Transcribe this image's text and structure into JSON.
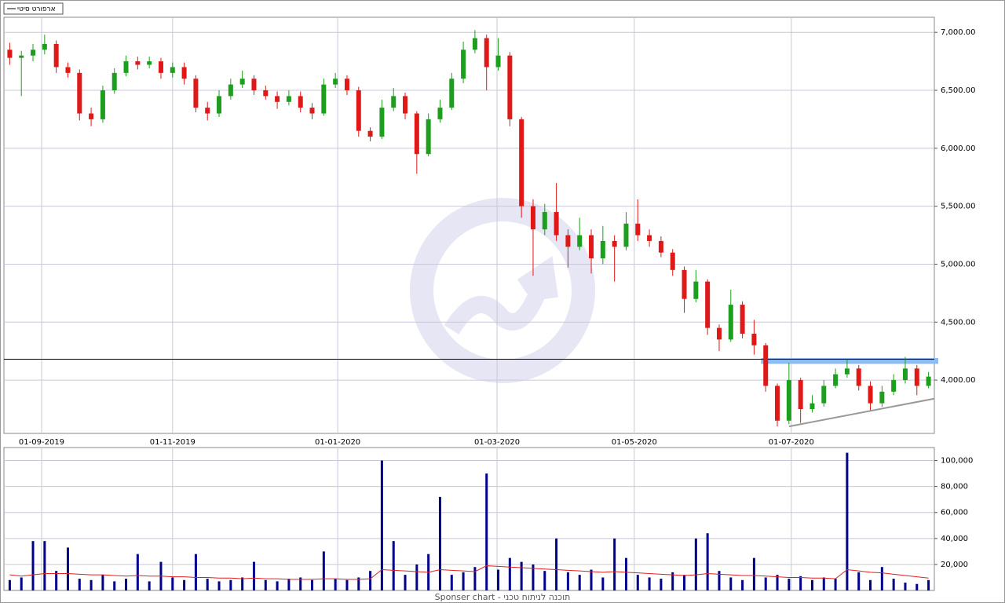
{
  "chart_data": [
    {
      "type": "candlestick",
      "legend_label": "ארפורט סיטי",
      "xlim": [
        -0.5,
        79.5
      ],
      "xticks": [
        {
          "value": 2.74,
          "label": "01-09-2019"
        },
        {
          "value": 14.0,
          "label": "01-11-2019"
        },
        {
          "value": 28.2,
          "label": "01-01-2020"
        },
        {
          "value": 41.9,
          "label": "01-03-2020"
        },
        {
          "value": 53.7,
          "label": "01-05-2020"
        },
        {
          "value": 67.2,
          "label": "01-07-2020"
        }
      ],
      "ylim": [
        3540,
        7130
      ],
      "yticks": [
        {
          "value": 4000,
          "label": "4,000.00"
        },
        {
          "value": 4500,
          "label": "4,500.00"
        },
        {
          "value": 5000,
          "label": "5,000.00"
        },
        {
          "value": 5500,
          "label": "5,500.00"
        },
        {
          "value": 6000,
          "label": "6,000.00"
        },
        {
          "value": 6500,
          "label": "6,500.00"
        },
        {
          "value": 7000,
          "label": "7,000.00"
        }
      ],
      "grid": true,
      "up_color": "#1e9e1e",
      "down_color": "#e01818",
      "open": [
        6850,
        6780,
        6800,
        6850,
        6900,
        6700,
        6650,
        6300,
        6250,
        6500,
        6650,
        6750,
        6720,
        6750,
        6650,
        6700,
        6600,
        6350,
        6300,
        6450,
        6550,
        6600,
        6500,
        6450,
        6400,
        6450,
        6350,
        6300,
        6550,
        6600,
        6500,
        6150,
        6100,
        6350,
        6450,
        6300,
        5950,
        6250,
        6350,
        6600,
        6850,
        6950,
        6700,
        6800,
        6250,
        5500,
        5300,
        5450,
        5250,
        5150,
        5250,
        5050,
        5200,
        5150,
        5350,
        5250,
        5200,
        5100,
        4950,
        4700,
        4850,
        4450,
        4350,
        4650,
        4400,
        4300,
        3950,
        3650,
        4000,
        3750,
        3800,
        3950,
        4050,
        4100,
        3950,
        3800,
        3900,
        4000,
        4100,
        3950
      ],
      "high": [
        6910,
        6840,
        6900,
        6980,
        6930,
        6740,
        6680,
        6350,
        6540,
        6690,
        6800,
        6790,
        6790,
        6780,
        6740,
        6740,
        6630,
        6400,
        6500,
        6600,
        6670,
        6630,
        6540,
        6490,
        6500,
        6490,
        6390,
        6600,
        6650,
        6630,
        6530,
        6180,
        6420,
        6520,
        6480,
        6320,
        6300,
        6420,
        6650,
        6920,
        7020,
        6980,
        6950,
        6830,
        6270,
        5560,
        5520,
        5700,
        5300,
        5400,
        5300,
        5330,
        5250,
        5450,
        5560,
        5300,
        5240,
        5130,
        4980,
        4950,
        4870,
        4480,
        4780,
        4680,
        4520,
        4320,
        3970,
        4150,
        4020,
        3870,
        4000,
        4100,
        4180,
        4130,
        3990,
        3950,
        4050,
        4200,
        4130,
        4070
      ],
      "low": [
        6720,
        6450,
        6750,
        6810,
        6650,
        6610,
        6240,
        6190,
        6220,
        6470,
        6620,
        6680,
        6690,
        6600,
        6610,
        6550,
        6310,
        6240,
        6270,
        6420,
        6520,
        6460,
        6420,
        6340,
        6370,
        6310,
        6250,
        6280,
        6520,
        6460,
        6100,
        6060,
        6080,
        6320,
        6250,
        5780,
        5930,
        6220,
        6330,
        6560,
        6820,
        6500,
        6670,
        6190,
        5400,
        4900,
        5250,
        5200,
        4970,
        5120,
        4920,
        5000,
        4850,
        5120,
        5200,
        5150,
        5060,
        4900,
        4580,
        4670,
        4390,
        4250,
        4330,
        4360,
        4220,
        3900,
        3600,
        3620,
        3630,
        3720,
        3770,
        3930,
        4020,
        3910,
        3740,
        3770,
        3870,
        3970,
        3870,
        3930
      ],
      "close": [
        6780,
        6800,
        6850,
        6900,
        6700,
        6650,
        6300,
        6250,
        6500,
        6650,
        6750,
        6720,
        6750,
        6650,
        6700,
        6600,
        6350,
        6300,
        6450,
        6550,
        6600,
        6500,
        6450,
        6400,
        6450,
        6350,
        6300,
        6550,
        6600,
        6500,
        6150,
        6100,
        6350,
        6450,
        6300,
        5950,
        6250,
        6350,
        6600,
        6850,
        6950,
        6700,
        6800,
        6250,
        5500,
        5300,
        5450,
        5250,
        5150,
        5250,
        5050,
        5200,
        5150,
        5350,
        5250,
        5200,
        5100,
        4950,
        4700,
        4850,
        4450,
        4350,
        4650,
        4400,
        4300,
        3950,
        3650,
        4000,
        3750,
        3800,
        3950,
        4050,
        4100,
        3950,
        3800,
        3900,
        4000,
        4100,
        3950,
        4030
      ],
      "hline": 4180,
      "zone": {
        "x": [
          64.6,
          80
        ],
        "y": [
          4140,
          4190
        ],
        "color": "#8cbcf0"
      },
      "trend": {
        "x": [
          67,
          79.5
        ],
        "y": [
          3600,
          3840
        ],
        "color": "#999999"
      }
    },
    {
      "type": "bar",
      "color": "#00008b",
      "ylim": [
        0,
        110000
      ],
      "yticks": [
        {
          "value": 20000,
          "label": "20,000"
        },
        {
          "value": 40000,
          "label": "40,000"
        },
        {
          "value": 60000,
          "label": "60,000"
        },
        {
          "value": 80000,
          "label": "80,000"
        },
        {
          "value": 100000,
          "label": "100,000"
        }
      ],
      "values": [
        8000,
        10000,
        38000,
        38000,
        15000,
        33000,
        9000,
        8000,
        12000,
        7000,
        9000,
        28000,
        7000,
        22000,
        10000,
        8000,
        28000,
        9000,
        7000,
        8000,
        10000,
        22000,
        8000,
        7000,
        9000,
        10000,
        8000,
        30000,
        9000,
        8000,
        10000,
        15000,
        100000,
        38000,
        12000,
        20000,
        28000,
        72000,
        12000,
        14000,
        18000,
        90000,
        16000,
        25000,
        22000,
        20000,
        15000,
        40000,
        14000,
        12000,
        16000,
        10000,
        40000,
        25000,
        12000,
        10000,
        9000,
        14000,
        12000,
        40000,
        44000,
        15000,
        10000,
        8000,
        25000,
        10000,
        12000,
        9000,
        11000,
        8000,
        10000,
        9000,
        106000,
        14000,
        8000,
        18000,
        9000,
        6000,
        5000,
        8000
      ],
      "line_color": "#e02020",
      "line_values": [
        12000,
        11000,
        12000,
        13000,
        13000,
        13000,
        12500,
        12000,
        12000,
        11500,
        11000,
        11500,
        11000,
        11000,
        10500,
        10500,
        10000,
        10000,
        9500,
        9500,
        9000,
        9500,
        9000,
        9000,
        8500,
        8500,
        8500,
        9000,
        9000,
        8500,
        8500,
        9000,
        16000,
        15500,
        15000,
        14500,
        14000,
        16000,
        15500,
        15000,
        14500,
        19000,
        18500,
        18000,
        17500,
        17000,
        16500,
        16000,
        15500,
        15000,
        14500,
        14000,
        14500,
        14000,
        13500,
        13000,
        12500,
        12000,
        11500,
        12000,
        13000,
        12500,
        12000,
        11500,
        11500,
        11000,
        10500,
        10000,
        10000,
        9500,
        9500,
        9000,
        16000,
        15000,
        14000,
        13500,
        12500,
        11500,
        10500,
        9500
      ]
    }
  ],
  "footer": "Sponser chart - תוכנה לניתוח טכני"
}
